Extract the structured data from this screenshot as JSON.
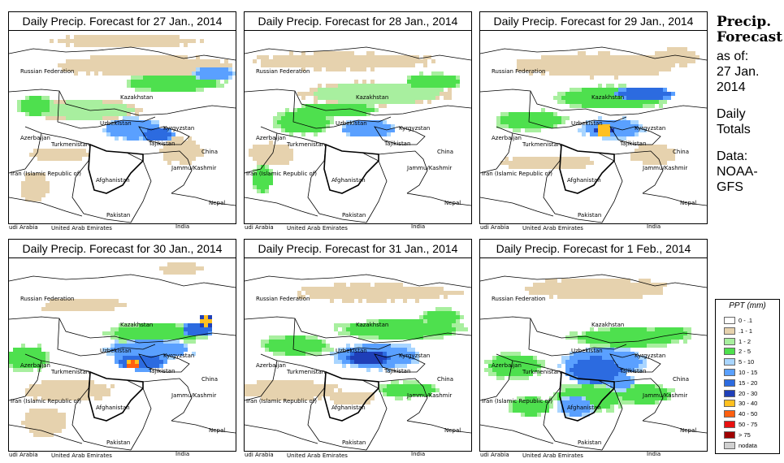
{
  "panels": [
    {
      "title": "Daily Precip. Forecast for  27 Jan., 2014"
    },
    {
      "title": "Daily Precip. Forecast for  28 Jan., 2014"
    },
    {
      "title": "Daily Precip. Forecast for  29 Jan., 2014"
    },
    {
      "title": "Daily Precip. Forecast for  30 Jan., 2014"
    },
    {
      "title": "Daily Precip. Forecast for  31 Jan., 2014"
    },
    {
      "title": "Daily Precip. Forecast for  1 Feb., 2014"
    }
  ],
  "map_labels": {
    "russia": "Russian Federation",
    "kazakhstan": "Kazakhstan",
    "uzbekistan": "Uzbekistan",
    "kyrgyzstan": "Kyrgyzstan",
    "tajikistan": "Tajikistan",
    "azerbaijan": "Azerbaijan",
    "turkmenistan": "Turkmenistan",
    "china": "China",
    "jammu": "Jammu/Kashmir",
    "iran": "Iran (Islamic Republic of)",
    "afghanistan": "Afghanistan",
    "nepal": "Nepal",
    "pakistan": "Pakistan",
    "saudi": "udi Arabia",
    "uae": "United Arab Emirates",
    "india": "India"
  },
  "info": {
    "title_line1": "Precip.",
    "title_line2": "Forecast",
    "asof_line1": "as of:",
    "asof_line2": "27 Jan.",
    "asof_line3": "2014",
    "daily_line1": "Daily",
    "daily_line2": "Totals",
    "source_line1": "Data:",
    "source_line2": "NOAA-",
    "source_line3": "GFS"
  },
  "legend": {
    "title": "PPT (mm)",
    "items": [
      {
        "label": "0 - .1",
        "color": "#ffffff"
      },
      {
        "label": ".1 - 1",
        "color": "#e6d2ae"
      },
      {
        "label": "1 - 2",
        "color": "#a8ef9f"
      },
      {
        "label": "2 - 5",
        "color": "#4ee04e"
      },
      {
        "label": "5 - 10",
        "color": "#a9d5ff"
      },
      {
        "label": "10 - 15",
        "color": "#5aa0ff"
      },
      {
        "label": "15 - 20",
        "color": "#2c6be0"
      },
      {
        "label": "20 - 30",
        "color": "#1f3fb8"
      },
      {
        "label": "30 - 40",
        "color": "#ffc020"
      },
      {
        "label": "40 - 50",
        "color": "#ff6010"
      },
      {
        "label": "50 - 75",
        "color": "#e81010"
      },
      {
        "label": "> 75",
        "color": "#a00000"
      },
      {
        "label": "nodata",
        "color": "#d0d0d0"
      }
    ]
  }
}
